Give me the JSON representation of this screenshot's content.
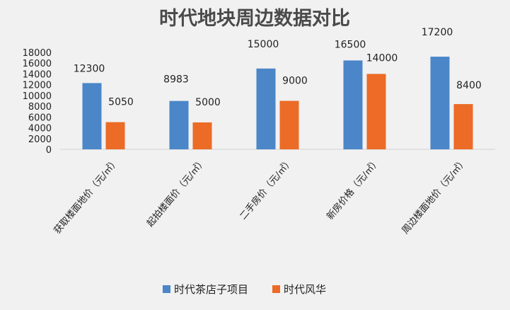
{
  "chart_data": {
    "type": "bar",
    "title": "时代地块周边数据对比",
    "categories": [
      "获取楼面地价（元/㎡）",
      "起拍楼面价（元/㎡）",
      "二手房价（元/㎡）",
      "新房价格（元/㎡）",
      "周边楼面地价（元/㎡）"
    ],
    "series": [
      {
        "name": "时代茶店子项目",
        "values": [
          12300,
          8983,
          15000,
          16500,
          17200
        ]
      },
      {
        "name": "时代风华",
        "values": [
          5050,
          5000,
          9000,
          14000,
          8400
        ]
      }
    ],
    "data_labels": [
      [
        "12300",
        "8983",
        "15000",
        "16500",
        "17200"
      ],
      [
        "5050",
        "5000",
        "9000",
        "14000",
        "8400"
      ]
    ],
    "yticks": [
      0,
      2000,
      4000,
      6000,
      8000,
      10000,
      12000,
      14000,
      16000,
      18000
    ],
    "ylim": [
      0,
      18000
    ],
    "grid": false,
    "legend": "bottom",
    "colors": [
      "#4a86c8",
      "#ec6b26"
    ]
  }
}
